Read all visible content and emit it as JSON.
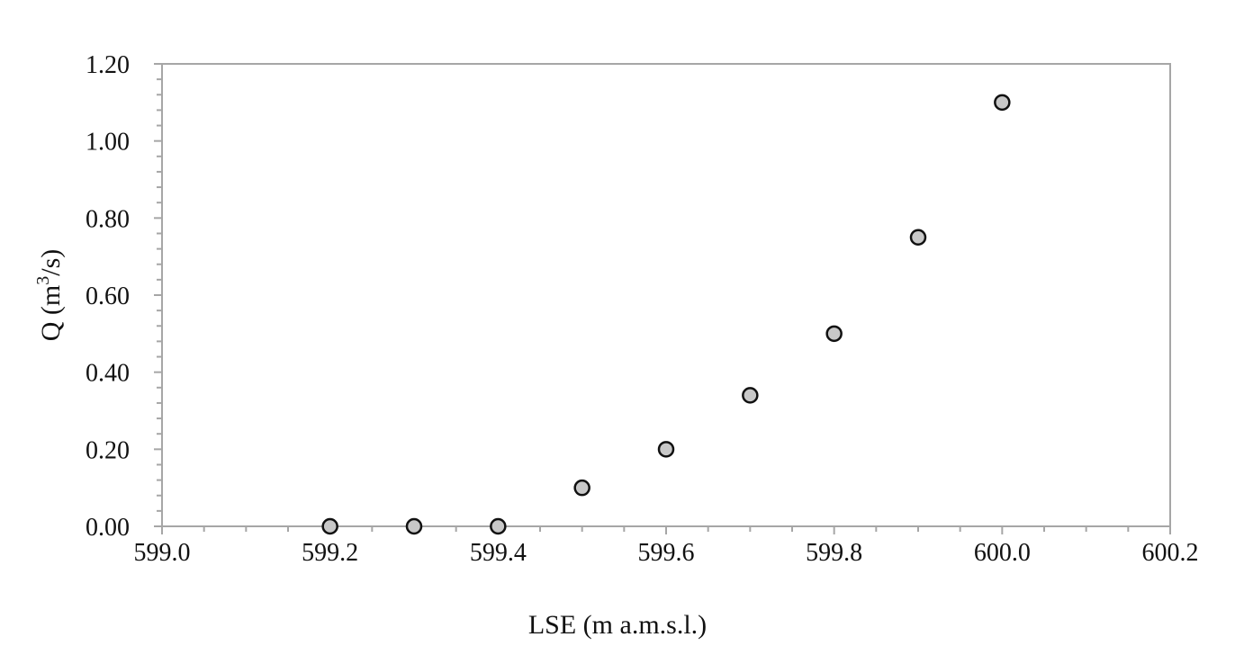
{
  "chart_data": {
    "type": "scatter",
    "xlabel": "LSE (m a.m.s.l.)",
    "ylabel_main": "Q (m",
    "ylabel_sup": "3",
    "ylabel_tail": "/s)",
    "xlim": [
      599.0,
      600.2
    ],
    "ylim": [
      0.0,
      1.2
    ],
    "x_ticks": [
      "599.0",
      "599.2",
      "599.4",
      "599.6",
      "599.8",
      "600.0",
      "600.2"
    ],
    "y_ticks": [
      "0.00",
      "0.20",
      "0.40",
      "0.60",
      "0.80",
      "1.00",
      "1.20"
    ],
    "grid": false,
    "legend": "none",
    "points": [
      {
        "x": 599.2,
        "y": 0.0
      },
      {
        "x": 599.3,
        "y": 0.0
      },
      {
        "x": 599.4,
        "y": 0.0
      },
      {
        "x": 599.5,
        "y": 0.1
      },
      {
        "x": 599.6,
        "y": 0.2
      },
      {
        "x": 599.7,
        "y": 0.34
      },
      {
        "x": 599.8,
        "y": 0.5
      },
      {
        "x": 599.9,
        "y": 0.75
      },
      {
        "x": 600.0,
        "y": 1.1
      }
    ],
    "marker_fill": "#c8c8c8",
    "marker_stroke": "#111111",
    "axis_color": "#a6a6a6"
  }
}
